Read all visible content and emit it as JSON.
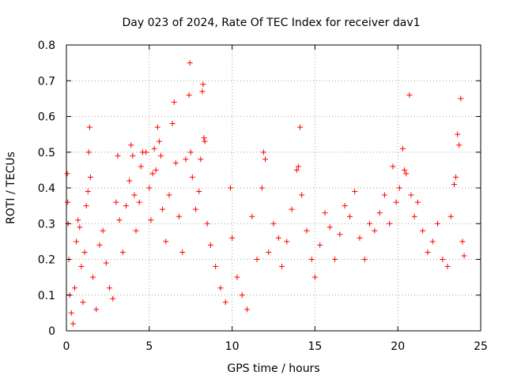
{
  "chart_data": {
    "type": "scatter",
    "title": "Day 023 of 2024, Rate Of TEC Index for receiver dav1",
    "xlabel": "GPS time / hours",
    "ylabel": "ROTI / TECUs",
    "xlim": [
      0,
      25
    ],
    "ylim": [
      0,
      0.8
    ],
    "xticks": [
      0,
      5,
      10,
      15,
      20,
      25
    ],
    "yticks": [
      0,
      0.1,
      0.2,
      0.3,
      0.4,
      0.5,
      0.6,
      0.7,
      0.8
    ],
    "xtick_labels": [
      "0",
      "5",
      "10",
      "15",
      "20",
      "25"
    ],
    "ytick_labels": [
      "0",
      "0.1",
      "0.2",
      "0.3",
      "0.4",
      "0.5",
      "0.6",
      "0.7",
      "0.8"
    ],
    "grid": true,
    "marker": "+",
    "marker_color": "#ff0000",
    "series": [
      {
        "values_note_excluded": true,
        "points": [
          [
            0.05,
            0.44
          ],
          [
            0.08,
            0.36
          ],
          [
            0.1,
            0.3
          ],
          [
            0.15,
            0.2
          ],
          [
            0.2,
            0.1
          ],
          [
            0.3,
            0.05
          ],
          [
            0.4,
            0.02
          ],
          [
            0.5,
            0.12
          ],
          [
            0.6,
            0.25
          ],
          [
            0.7,
            0.31
          ],
          [
            0.8,
            0.29
          ],
          [
            0.9,
            0.18
          ],
          [
            1.0,
            0.08
          ],
          [
            1.1,
            0.22
          ],
          [
            1.2,
            0.35
          ],
          [
            1.3,
            0.39
          ],
          [
            1.35,
            0.5
          ],
          [
            1.4,
            0.57
          ],
          [
            1.45,
            0.43
          ],
          [
            1.6,
            0.15
          ],
          [
            1.8,
            0.06
          ],
          [
            2.0,
            0.24
          ],
          [
            2.2,
            0.28
          ],
          [
            2.4,
            0.19
          ],
          [
            2.6,
            0.12
          ],
          [
            2.8,
            0.09
          ],
          [
            3.0,
            0.36
          ],
          [
            3.1,
            0.49
          ],
          [
            3.2,
            0.31
          ],
          [
            3.4,
            0.22
          ],
          [
            3.6,
            0.35
          ],
          [
            3.8,
            0.42
          ],
          [
            3.9,
            0.52
          ],
          [
            4.0,
            0.49
          ],
          [
            4.1,
            0.38
          ],
          [
            4.2,
            0.28
          ],
          [
            4.4,
            0.36
          ],
          [
            4.5,
            0.46
          ],
          [
            4.6,
            0.5
          ],
          [
            4.8,
            0.5
          ],
          [
            5.0,
            0.4
          ],
          [
            5.1,
            0.31
          ],
          [
            5.2,
            0.44
          ],
          [
            5.3,
            0.51
          ],
          [
            5.4,
            0.45
          ],
          [
            5.5,
            0.57
          ],
          [
            5.6,
            0.53
          ],
          [
            5.7,
            0.49
          ],
          [
            5.8,
            0.34
          ],
          [
            6.0,
            0.25
          ],
          [
            6.2,
            0.38
          ],
          [
            6.4,
            0.58
          ],
          [
            6.5,
            0.64
          ],
          [
            6.6,
            0.47
          ],
          [
            6.8,
            0.32
          ],
          [
            7.0,
            0.22
          ],
          [
            7.2,
            0.48
          ],
          [
            7.4,
            0.66
          ],
          [
            7.45,
            0.75
          ],
          [
            7.5,
            0.5
          ],
          [
            7.6,
            0.43
          ],
          [
            7.8,
            0.34
          ],
          [
            8.0,
            0.39
          ],
          [
            8.1,
            0.48
          ],
          [
            8.2,
            0.67
          ],
          [
            8.25,
            0.69
          ],
          [
            8.3,
            0.54
          ],
          [
            8.35,
            0.53
          ],
          [
            8.5,
            0.3
          ],
          [
            8.7,
            0.24
          ],
          [
            9.0,
            0.18
          ],
          [
            9.3,
            0.12
          ],
          [
            9.6,
            0.08
          ],
          [
            9.9,
            0.4
          ],
          [
            10.0,
            0.26
          ],
          [
            10.3,
            0.15
          ],
          [
            10.6,
            0.1
          ],
          [
            10.9,
            0.06
          ],
          [
            11.2,
            0.32
          ],
          [
            11.5,
            0.2
          ],
          [
            11.8,
            0.4
          ],
          [
            11.9,
            0.5
          ],
          [
            12.0,
            0.48
          ],
          [
            12.2,
            0.22
          ],
          [
            12.5,
            0.3
          ],
          [
            12.8,
            0.26
          ],
          [
            13.0,
            0.18
          ],
          [
            13.3,
            0.25
          ],
          [
            13.6,
            0.34
          ],
          [
            13.9,
            0.45
          ],
          [
            14.0,
            0.46
          ],
          [
            14.1,
            0.57
          ],
          [
            14.2,
            0.38
          ],
          [
            14.5,
            0.28
          ],
          [
            14.8,
            0.2
          ],
          [
            15.0,
            0.15
          ],
          [
            15.3,
            0.24
          ],
          [
            15.6,
            0.33
          ],
          [
            15.9,
            0.29
          ],
          [
            16.2,
            0.2
          ],
          [
            16.5,
            0.27
          ],
          [
            16.8,
            0.35
          ],
          [
            17.1,
            0.32
          ],
          [
            17.4,
            0.39
          ],
          [
            17.7,
            0.26
          ],
          [
            18.0,
            0.2
          ],
          [
            18.3,
            0.3
          ],
          [
            18.6,
            0.28
          ],
          [
            18.9,
            0.33
          ],
          [
            19.2,
            0.38
          ],
          [
            19.5,
            0.3
          ],
          [
            19.7,
            0.46
          ],
          [
            19.9,
            0.36
          ],
          [
            20.1,
            0.4
          ],
          [
            20.3,
            0.51
          ],
          [
            20.4,
            0.45
          ],
          [
            20.5,
            0.44
          ],
          [
            20.7,
            0.66
          ],
          [
            20.8,
            0.38
          ],
          [
            21.0,
            0.32
          ],
          [
            21.2,
            0.36
          ],
          [
            21.5,
            0.28
          ],
          [
            21.8,
            0.22
          ],
          [
            22.1,
            0.25
          ],
          [
            22.4,
            0.3
          ],
          [
            22.7,
            0.2
          ],
          [
            23.0,
            0.18
          ],
          [
            23.2,
            0.32
          ],
          [
            23.4,
            0.41
          ],
          [
            23.5,
            0.43
          ],
          [
            23.6,
            0.55
          ],
          [
            23.7,
            0.52
          ],
          [
            23.8,
            0.65
          ],
          [
            23.9,
            0.25
          ],
          [
            24.0,
            0.21
          ]
        ]
      }
    ]
  }
}
